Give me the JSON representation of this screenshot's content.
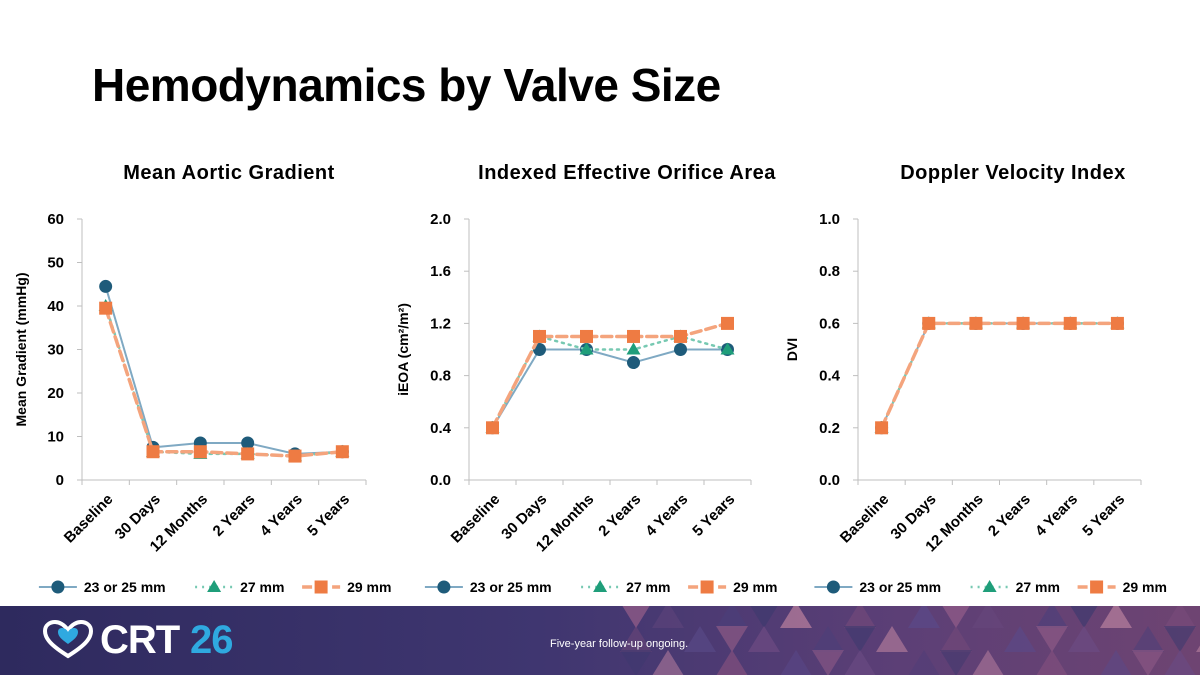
{
  "slide": {
    "title": "Hemodynamics by Valve Size"
  },
  "colors": {
    "s1": "#1e5b7a",
    "s1_line": "#7fa9c3",
    "s2": "#1f9e7a",
    "s2_line": "#77c9b2",
    "s3": "#ee7b43",
    "s3_line": "#f4a47d"
  },
  "chart_data": [
    {
      "type": "line",
      "title": "Mean Aortic Gradient",
      "ylabel": "Mean Gradient (mmHg)",
      "xlabel": "",
      "categories": [
        "Baseline",
        "30 Days",
        "12 Months",
        "2 Years",
        "4 Years",
        "5 Years"
      ],
      "ylim": [
        0,
        60
      ],
      "yticks": [
        "0",
        "10",
        "20",
        "30",
        "40",
        "50",
        "60"
      ],
      "series": [
        {
          "name": "23 or 25 mm",
          "values": [
            44.5,
            7.5,
            8.5,
            8.5,
            6,
            6.5
          ]
        },
        {
          "name": "27 mm",
          "values": [
            40,
            6.5,
            6,
            6,
            5.5,
            6.5
          ]
        },
        {
          "name": "29 mm",
          "values": [
            39.5,
            6.5,
            6.5,
            6,
            5.5,
            6.5
          ]
        }
      ],
      "legend": "bottom"
    },
    {
      "type": "line",
      "title": "Indexed Effective Orifice Area",
      "ylabel": "iEOA (cm²/m²)",
      "xlabel": "",
      "categories": [
        "Baseline",
        "30 Days",
        "12 Months",
        "2 Years",
        "4 Years",
        "5 Years"
      ],
      "ylim": [
        0,
        2.0
      ],
      "yticks": [
        "0.0",
        "0.4",
        "0.8",
        "1.2",
        "1.6",
        "2.0"
      ],
      "series": [
        {
          "name": "23 or 25 mm",
          "values": [
            0.4,
            1.0,
            1.0,
            0.9,
            1.0,
            1.0
          ]
        },
        {
          "name": "27 mm",
          "values": [
            0.4,
            1.1,
            1.0,
            1.0,
            1.1,
            1.0
          ]
        },
        {
          "name": "29 mm",
          "values": [
            0.4,
            1.1,
            1.1,
            1.1,
            1.1,
            1.2
          ]
        }
      ],
      "legend": "bottom"
    },
    {
      "type": "line",
      "title": "Doppler Velocity Index",
      "ylabel": "DVI",
      "xlabel": "",
      "categories": [
        "Baseline",
        "30 Days",
        "12 Months",
        "2 Years",
        "4 Years",
        "5 Years"
      ],
      "ylim": [
        0,
        1.0
      ],
      "yticks": [
        "0.0",
        "0.2",
        "0.4",
        "0.6",
        "0.8",
        "1.0"
      ],
      "series": [
        {
          "name": "23 or 25 mm",
          "values": [
            0.2,
            0.6,
            0.6,
            0.6,
            0.6,
            0.6
          ]
        },
        {
          "name": "27 mm",
          "values": [
            0.2,
            0.6,
            0.6,
            0.6,
            0.6,
            0.6
          ]
        },
        {
          "name": "29 mm",
          "values": [
            0.2,
            0.6,
            0.6,
            0.6,
            0.6,
            0.6
          ]
        }
      ],
      "legend": "bottom"
    }
  ],
  "footer": {
    "brand_text": "CRT",
    "brand_number": "26",
    "note": "Five-year follow-up ongoing."
  }
}
